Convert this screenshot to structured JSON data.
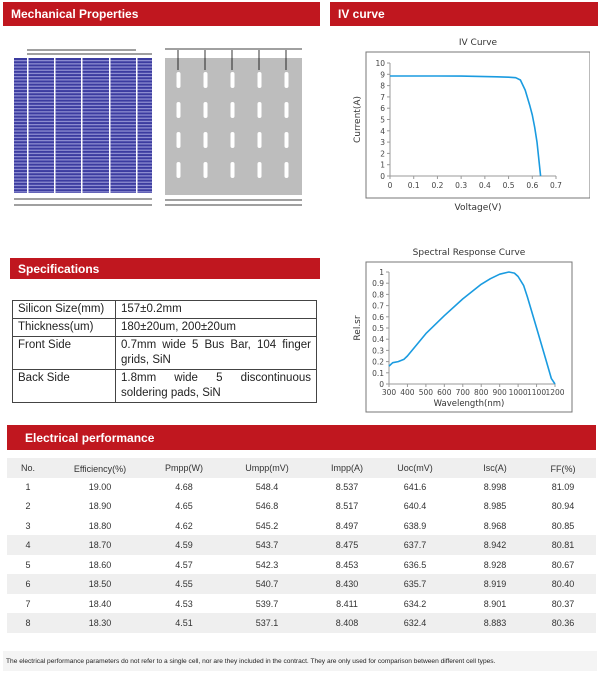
{
  "sections": {
    "mechanical": "Mechanical Properties",
    "iv": "IV curve",
    "specs": "Specifications",
    "electrical": "Electrical performance"
  },
  "specifications": [
    {
      "label": "Silicon Size(mm)",
      "value": "157±0.2mm"
    },
    {
      "label": "Thickness(um)",
      "value": "180±20um, 200±20um"
    },
    {
      "label": "Front Side",
      "value": "0.7mm wide 5 Bus Bar, 104 finger grids, SiN"
    },
    {
      "label": "Back Side",
      "value": "1.8mm wide 5 discontinuous soldering pads, SiN"
    }
  ],
  "electrical": {
    "headers": [
      "No.",
      "Efficiency(%)",
      "Pmpp(W)",
      "Umpp(mV)",
      "Impp(A)",
      "Uoc(mV)",
      "Isc(A)",
      "FF(%)"
    ],
    "rows": [
      [
        "1",
        "19.00",
        "4.68",
        "548.4",
        "8.537",
        "641.6",
        "8.998",
        "81.09"
      ],
      [
        "2",
        "18.90",
        "4.65",
        "546.8",
        "8.517",
        "640.4",
        "8.985",
        "80.94"
      ],
      [
        "3",
        "18.80",
        "4.62",
        "545.2",
        "8.497",
        "638.9",
        "8.968",
        "80.85"
      ],
      [
        "4",
        "18.70",
        "4.59",
        "543.7",
        "8.475",
        "637.7",
        "8.942",
        "80.81"
      ],
      [
        "5",
        "18.60",
        "4.57",
        "542.3",
        "8.453",
        "636.5",
        "8.928",
        "80.67"
      ],
      [
        "6",
        "18.50",
        "4.55",
        "540.7",
        "8.430",
        "635.7",
        "8.919",
        "80.40"
      ],
      [
        "7",
        "18.40",
        "4.53",
        "539.7",
        "8.411",
        "634.2",
        "8.901",
        "80.37"
      ],
      [
        "8",
        "18.30",
        "4.51",
        "537.1",
        "8.408",
        "632.4",
        "8.883",
        "80.36"
      ]
    ],
    "footnote": "The electrical performance parameters do not refer to a single cell, nor are they included in the contract. They are only used for comparison between different cell types."
  },
  "colors": {
    "header": "#c0171f",
    "curve": "#1a9be0",
    "cell_front": "#3c3ca0",
    "cell_back": "#bdbdbd"
  },
  "chart_data": [
    {
      "type": "line",
      "title": "IV Curve",
      "xlabel": "Voltage(V)",
      "ylabel": "Current(A)",
      "xlim": [
        0,
        0.7
      ],
      "ylim": [
        0,
        10
      ],
      "xticks": [
        "0",
        "0.1",
        "0.2",
        "0.3",
        "0.4",
        "0.5",
        "0.6",
        "0.7"
      ],
      "yticks": [
        "0",
        "1",
        "2",
        "3",
        "4",
        "5",
        "6",
        "7",
        "8",
        "9",
        "10"
      ],
      "grid": false,
      "x": [
        0,
        0.1,
        0.2,
        0.3,
        0.4,
        0.45,
        0.5,
        0.53,
        0.55,
        0.57,
        0.59,
        0.6,
        0.61,
        0.62,
        0.635
      ],
      "y": [
        8.85,
        8.85,
        8.85,
        8.84,
        8.8,
        8.78,
        8.74,
        8.7,
        8.5,
        7.6,
        6.2,
        5.4,
        4.3,
        3.0,
        0
      ]
    },
    {
      "type": "line",
      "title": "Spectral Response Curve",
      "xlabel": "Wavelength(nm)",
      "ylabel": "Rel.sr",
      "xlim": [
        300,
        1200
      ],
      "ylim": [
        0,
        1
      ],
      "xticks": [
        "300",
        "400",
        "500",
        "600",
        "700",
        "800",
        "900",
        "1000",
        "1100",
        "1200"
      ],
      "yticks": [
        "0",
        "0.1",
        "0.2",
        "0.3",
        "0.4",
        "0.5",
        "0.6",
        "0.7",
        "0.8",
        "0.9",
        "1"
      ],
      "grid": false,
      "x": [
        300,
        320,
        350,
        380,
        400,
        450,
        500,
        600,
        700,
        800,
        850,
        900,
        950,
        980,
        1000,
        1030,
        1050,
        1100,
        1150,
        1180,
        1200
      ],
      "y": [
        0.16,
        0.19,
        0.2,
        0.22,
        0.25,
        0.35,
        0.45,
        0.61,
        0.76,
        0.89,
        0.94,
        0.98,
        1.0,
        0.99,
        0.96,
        0.88,
        0.78,
        0.5,
        0.22,
        0.05,
        0
      ]
    }
  ]
}
